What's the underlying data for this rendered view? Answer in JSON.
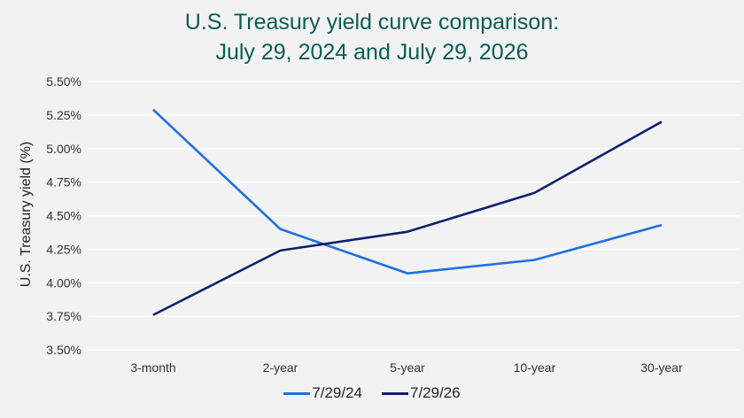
{
  "title_lines": [
    "U.S. Treasury yield curve comparison:",
    "July 29, 2024 and July 29, 2026"
  ],
  "chart_data": {
    "type": "line",
    "title": "U.S. Treasury yield curve comparison: July 29, 2024 and July 29, 2026",
    "xlabel": "",
    "ylabel": "U.S. Treasury yield (%)",
    "categories": [
      "3-month",
      "2-year",
      "5-year",
      "10-year",
      "30-year"
    ],
    "y_ticks": [
      "5.50%",
      "5.25%",
      "5.00%",
      "4.75%",
      "4.50%",
      "4.25%",
      "4.00%",
      "3.75%",
      "3.50%"
    ],
    "ylim": [
      3.5,
      5.5
    ],
    "grid": true,
    "legend_position": "bottom",
    "series": [
      {
        "name": "7/29/24",
        "color": "#1f6fe0",
        "values": [
          5.29,
          4.4,
          4.07,
          4.17,
          4.43
        ]
      },
      {
        "name": "7/29/26",
        "color": "#0f1f6e",
        "values": [
          3.76,
          4.24,
          4.38,
          4.67,
          5.2
        ]
      }
    ]
  }
}
